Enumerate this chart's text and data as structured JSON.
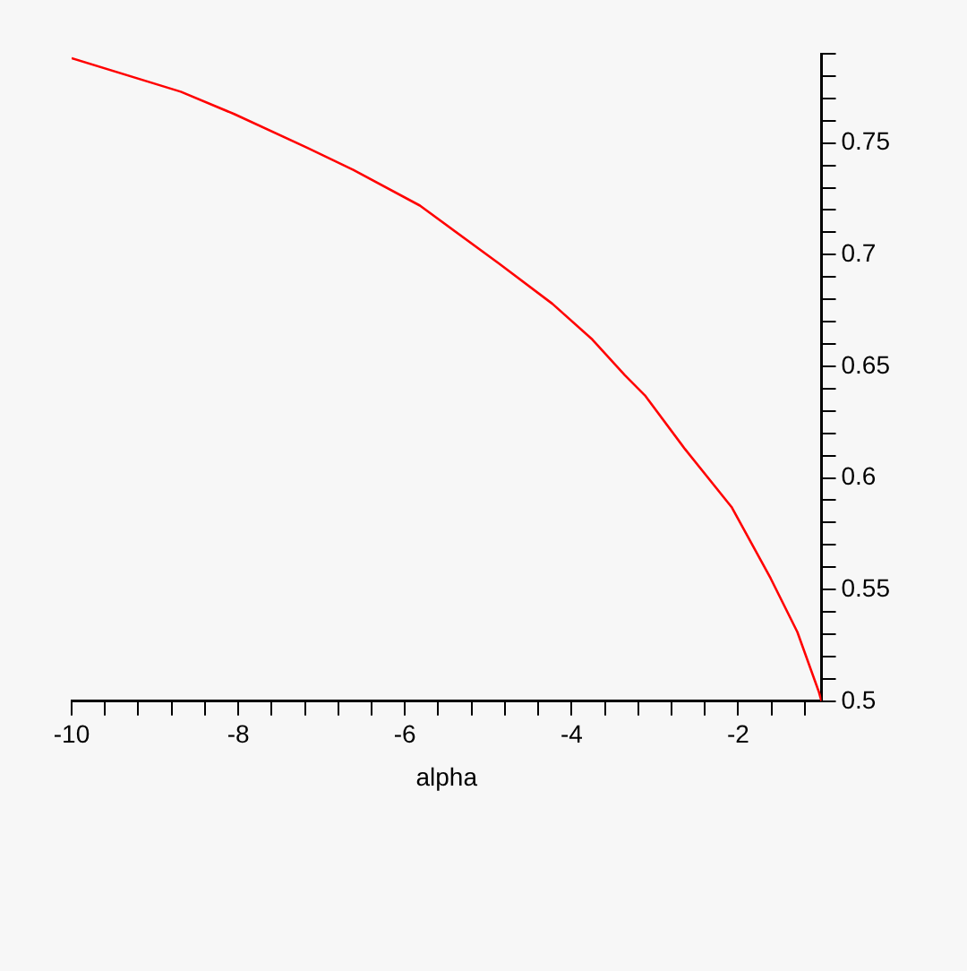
{
  "chart_data": {
    "type": "line",
    "xlabel": "alpha",
    "series": [
      {
        "color": "#ff0000",
        "x": [
          -10,
          -8.69,
          -8.05,
          -7.18,
          -6.62,
          -5.82,
          -4.87,
          -4.23,
          -3.75,
          -3.36,
          -3.12,
          -2.64,
          -2.08,
          -1.61,
          -1.29,
          -1.03,
          -1
        ],
        "values": [
          0.788,
          0.773,
          0.763,
          0.748,
          0.738,
          0.722,
          0.696,
          0.678,
          0.662,
          0.646,
          0.637,
          0.613,
          0.587,
          0.555,
          0.531,
          0.504,
          0.5
        ]
      }
    ],
    "xlim": [
      -10,
      -1
    ],
    "xticks": [
      -10,
      {
        "value": -9.6,
        "label": null
      },
      {
        "value": -9.2,
        "label": null
      },
      {
        "value": -8.8,
        "label": null
      },
      {
        "value": -8.4,
        "label": null
      },
      -8,
      {
        "value": -7.6,
        "label": null
      },
      {
        "value": -7.2,
        "label": null
      },
      {
        "value": -6.8,
        "label": null
      },
      {
        "value": -6.4,
        "label": null
      },
      -6,
      {
        "value": -5.6,
        "label": null
      },
      {
        "value": -5.2,
        "label": null
      },
      {
        "value": -4.8,
        "label": null
      },
      {
        "value": -4.4,
        "label": null
      },
      -4,
      {
        "value": -3.6,
        "label": null
      },
      {
        "value": -3.2,
        "label": null
      },
      {
        "value": -2.8,
        "label": null
      },
      {
        "value": -2.4,
        "label": null
      },
      -2,
      {
        "value": -1.6,
        "label": null
      },
      {
        "value": -1.2,
        "label": null
      }
    ],
    "ylim": [
      0.5,
      0.79
    ],
    "yticks": [
      0.5,
      {
        "value": 0.51,
        "label": null
      },
      {
        "value": 0.52,
        "label": null
      },
      {
        "value": 0.53,
        "label": null
      },
      {
        "value": 0.54,
        "label": null
      },
      0.55,
      {
        "value": 0.56,
        "label": null
      },
      {
        "value": 0.57,
        "label": null
      },
      {
        "value": 0.58,
        "label": null
      },
      {
        "value": 0.59,
        "label": null
      },
      0.6,
      {
        "value": 0.61,
        "label": null
      },
      {
        "value": 0.62,
        "label": null
      },
      {
        "value": 0.63,
        "label": null
      },
      {
        "value": 0.64,
        "label": null
      },
      0.65,
      {
        "value": 0.66,
        "label": null
      },
      {
        "value": 0.67,
        "label": null
      },
      {
        "value": 0.68,
        "label": null
      },
      {
        "value": 0.69,
        "label": null
      },
      0.7,
      {
        "value": 0.71,
        "label": null
      },
      {
        "value": 0.72,
        "label": null
      },
      {
        "value": 0.73,
        "label": null
      },
      {
        "value": 0.74,
        "label": null
      },
      0.75,
      {
        "value": 0.76,
        "label": null
      },
      {
        "value": 0.77,
        "label": null
      },
      {
        "value": 0.78,
        "label": null
      },
      {
        "value": 0.79,
        "label": null
      }
    ],
    "grid": false,
    "legend": false,
    "marker": "none",
    "line_style": "solid"
  }
}
